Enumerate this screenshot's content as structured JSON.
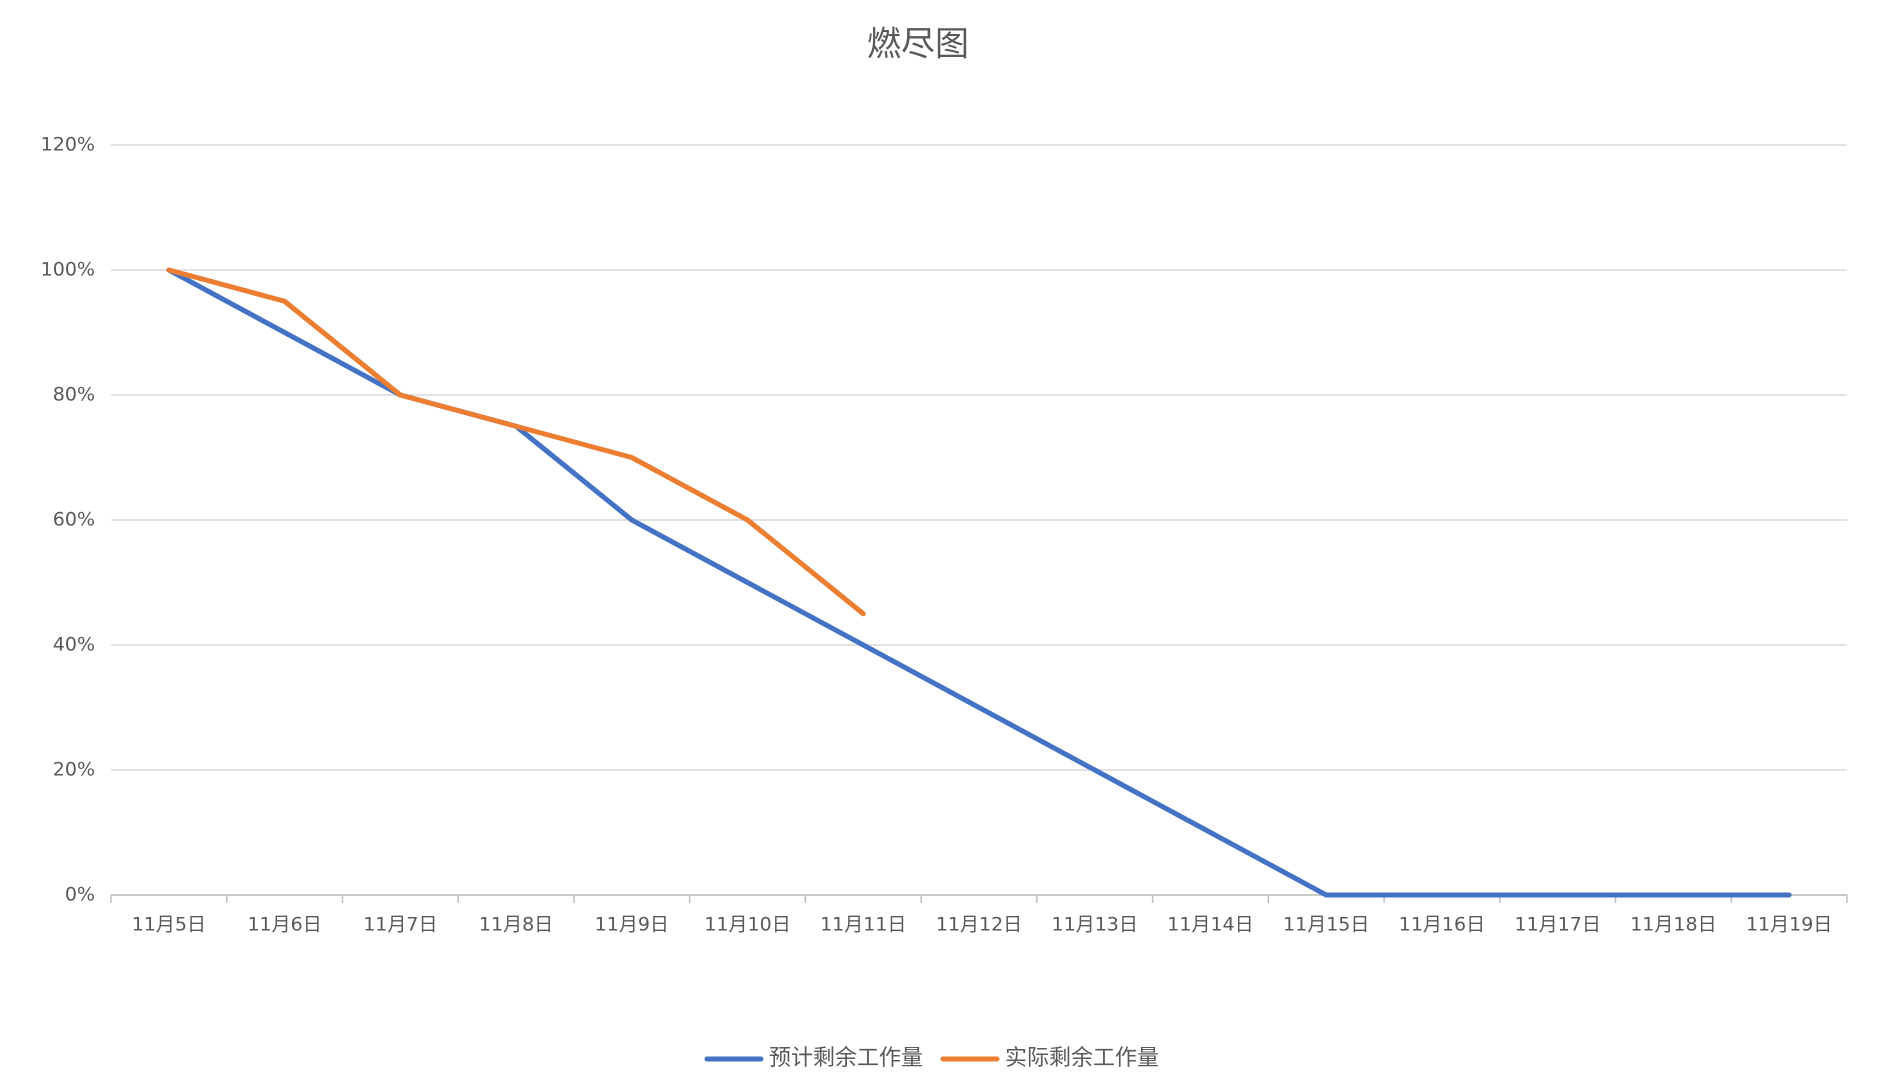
{
  "chart_data": {
    "type": "line",
    "title": "燃尽图",
    "categories": [
      "11月5日",
      "11月6日",
      "11月7日",
      "11月8日",
      "11月9日",
      "11月10日",
      "11月11日",
      "11月12日",
      "11月13日",
      "11月14日",
      "11月15日",
      "11月16日",
      "11月17日",
      "11月18日",
      "11月19日"
    ],
    "series": [
      {
        "name": "预计剩余工作量",
        "color": "#4472c4",
        "values": [
          100,
          90,
          80,
          75,
          60,
          50,
          40,
          30,
          20,
          10,
          0,
          0,
          0,
          0,
          0
        ]
      },
      {
        "name": "实际剩余工作量",
        "color": "#ed7d31",
        "values": [
          100,
          95,
          80,
          75,
          70,
          60,
          45,
          null,
          null,
          null,
          null,
          null,
          null,
          null,
          null
        ]
      }
    ],
    "ylim": [
      0,
      120
    ],
    "yticks": [
      {
        "value": 0,
        "label": "0%"
      },
      {
        "value": 20,
        "label": "20%"
      },
      {
        "value": 40,
        "label": "40%"
      },
      {
        "value": 60,
        "label": "60%"
      },
      {
        "value": 80,
        "label": "80%"
      },
      {
        "value": 100,
        "label": "100%"
      },
      {
        "value": 120,
        "label": "120%"
      }
    ],
    "grid": true,
    "legend": "bottom"
  }
}
